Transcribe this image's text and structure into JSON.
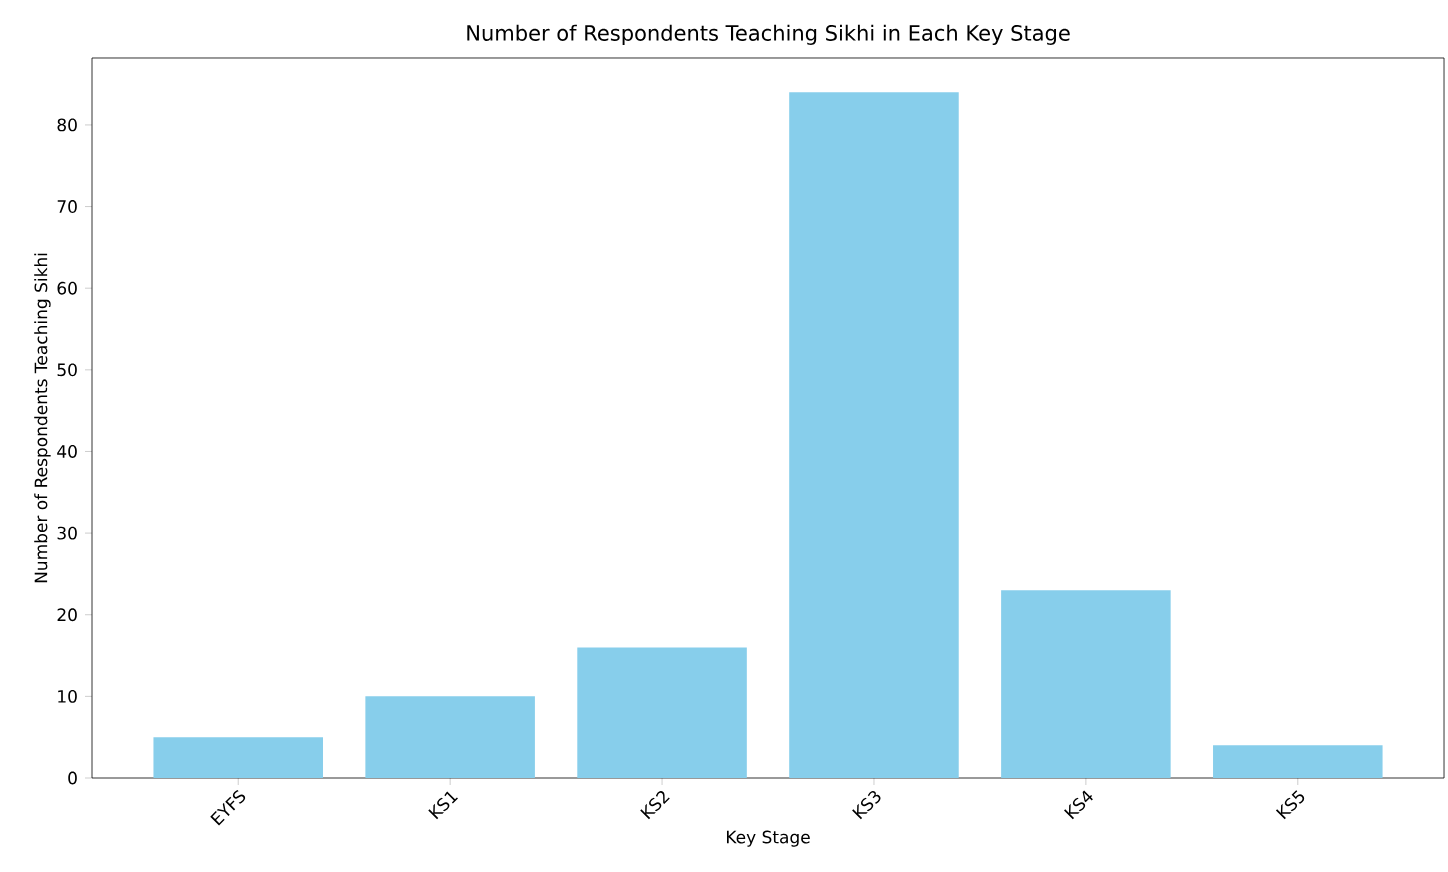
{
  "chart_data": {
    "type": "bar",
    "title": "Number of Respondents Teaching Sikhi in Each Key Stage",
    "xlabel": "Key Stage",
    "ylabel": "Number of Respondents Teaching Sikhi",
    "categories": [
      "EYFS",
      "KS1",
      "KS2",
      "KS3",
      "KS4",
      "KS5"
    ],
    "values": [
      5,
      10,
      16,
      84,
      23,
      4
    ],
    "color": "#87ceeb",
    "ylim": [
      0,
      88.2
    ],
    "yticks": [
      0,
      10,
      20,
      30,
      40,
      50,
      60,
      70,
      80
    ],
    "grid": false
  }
}
